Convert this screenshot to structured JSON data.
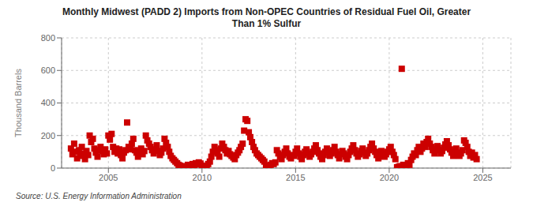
{
  "chart_data": {
    "type": "scatter",
    "title": "Monthly Midwest (PADD 2) Imports from Non-OPEC Countries of Residual Fuel Oil, Greater\nThan 1% Sulfur",
    "y_label": "Thousand Barrels",
    "annotations": [
      "Source: U.S. Energy Information Administration"
    ],
    "color": "#cc0000",
    "marker": "square",
    "grid": true,
    "xlim": [
      2002.5,
      2026.5
    ],
    "xticks": [
      2005,
      2010,
      2015,
      2020,
      2025
    ],
    "ylim": [
      0,
      800
    ],
    "yticks": [
      0,
      200,
      400,
      600,
      800
    ],
    "x": [
      2003.0,
      2003.08,
      2003.17,
      2003.25,
      2003.33,
      2003.42,
      2003.5,
      2003.58,
      2003.67,
      2003.75,
      2003.83,
      2003.92,
      2004.0,
      2004.08,
      2004.17,
      2004.25,
      2004.33,
      2004.42,
      2004.5,
      2004.58,
      2004.67,
      2004.75,
      2004.83,
      2004.92,
      2005.0,
      2005.08,
      2005.17,
      2005.25,
      2005.33,
      2005.42,
      2005.5,
      2005.58,
      2005.67,
      2005.75,
      2005.83,
      2005.92,
      2006.0,
      2006.08,
      2006.17,
      2006.25,
      2006.33,
      2006.42,
      2006.5,
      2006.58,
      2006.67,
      2006.75,
      2006.83,
      2006.92,
      2007.0,
      2007.08,
      2007.17,
      2007.25,
      2007.33,
      2007.42,
      2007.5,
      2007.58,
      2007.67,
      2007.75,
      2007.83,
      2007.92,
      2008.0,
      2008.08,
      2008.17,
      2008.25,
      2008.33,
      2008.42,
      2008.5,
      2008.58,
      2008.67,
      2008.75,
      2008.83,
      2008.92,
      2009.0,
      2009.08,
      2009.17,
      2009.25,
      2009.33,
      2009.42,
      2009.5,
      2009.58,
      2009.67,
      2009.75,
      2009.83,
      2009.92,
      2010.0,
      2010.08,
      2010.17,
      2010.25,
      2010.33,
      2010.42,
      2010.5,
      2010.58,
      2010.67,
      2010.75,
      2010.83,
      2010.92,
      2011.0,
      2011.08,
      2011.17,
      2011.25,
      2011.33,
      2011.42,
      2011.5,
      2011.58,
      2011.67,
      2011.75,
      2011.83,
      2011.92,
      2012.0,
      2012.08,
      2012.17,
      2012.25,
      2012.33,
      2012.42,
      2012.5,
      2012.58,
      2012.67,
      2012.75,
      2012.83,
      2012.92,
      2013.0,
      2013.08,
      2013.17,
      2013.25,
      2013.33,
      2013.42,
      2013.5,
      2013.58,
      2013.67,
      2013.75,
      2013.83,
      2013.92,
      2014.0,
      2014.08,
      2014.17,
      2014.25,
      2014.33,
      2014.42,
      2014.5,
      2014.58,
      2014.67,
      2014.75,
      2014.83,
      2014.92,
      2015.0,
      2015.08,
      2015.17,
      2015.25,
      2015.33,
      2015.42,
      2015.5,
      2015.58,
      2015.67,
      2015.75,
      2015.83,
      2015.92,
      2016.0,
      2016.08,
      2016.17,
      2016.25,
      2016.33,
      2016.42,
      2016.5,
      2016.58,
      2016.67,
      2016.75,
      2016.83,
      2016.92,
      2017.0,
      2017.08,
      2017.17,
      2017.25,
      2017.33,
      2017.42,
      2017.5,
      2017.58,
      2017.67,
      2017.75,
      2017.83,
      2017.92,
      2018.0,
      2018.08,
      2018.17,
      2018.25,
      2018.33,
      2018.42,
      2018.5,
      2018.58,
      2018.67,
      2018.75,
      2018.83,
      2018.92,
      2019.0,
      2019.08,
      2019.17,
      2019.25,
      2019.33,
      2019.42,
      2019.5,
      2019.58,
      2019.67,
      2019.75,
      2019.83,
      2019.92,
      2020.0,
      2020.08,
      2020.17,
      2020.25,
      2020.33,
      2020.42,
      2020.5,
      2020.58,
      2020.67,
      2020.75,
      2020.83,
      2020.92,
      2021.0,
      2021.08,
      2021.17,
      2021.25,
      2021.33,
      2021.42,
      2021.5,
      2021.58,
      2021.67,
      2021.75,
      2021.83,
      2021.92,
      2022.0,
      2022.08,
      2022.17,
      2022.25,
      2022.33,
      2022.42,
      2022.5,
      2022.58,
      2022.67,
      2022.75,
      2022.83,
      2022.92,
      2023.0,
      2023.08,
      2023.17,
      2023.25,
      2023.33,
      2023.42,
      2023.5,
      2023.58,
      2023.67,
      2023.75,
      2023.83,
      2023.92,
      2024.0,
      2024.08,
      2024.17,
      2024.25,
      2024.33,
      2024.42,
      2024.5,
      2024.58,
      2024.67
    ],
    "values": [
      120,
      85,
      150,
      100,
      60,
      110,
      75,
      130,
      90,
      55,
      105,
      80,
      200,
      160,
      180,
      120,
      95,
      70,
      110,
      130,
      105,
      85,
      115,
      90,
      200,
      175,
      210,
      130,
      100,
      120,
      90,
      115,
      80,
      60,
      95,
      110,
      280,
      130,
      115,
      150,
      180,
      110,
      95,
      70,
      100,
      120,
      85,
      105,
      200,
      170,
      150,
      130,
      110,
      90,
      115,
      140,
      105,
      80,
      95,
      120,
      180,
      155,
      130,
      100,
      75,
      60,
      50,
      40,
      30,
      20,
      15,
      10,
      5,
      8,
      12,
      20,
      15,
      10,
      25,
      18,
      30,
      22,
      35,
      28,
      15,
      10,
      5,
      8,
      25,
      40,
      70,
      100,
      130,
      110,
      90,
      70,
      120,
      150,
      130,
      110,
      90,
      105,
      85,
      75,
      65,
      55,
      80,
      95,
      110,
      130,
      150,
      230,
      300,
      290,
      220,
      190,
      160,
      130,
      110,
      90,
      80,
      70,
      60,
      50,
      40,
      5,
      10,
      15,
      20,
      30,
      25,
      35,
      110,
      90,
      70,
      55,
      80,
      100,
      120,
      90,
      70,
      60,
      80,
      75,
      100,
      120,
      90,
      70,
      55,
      80,
      100,
      115,
      90,
      70,
      85,
      100,
      120,
      140,
      110,
      90,
      70,
      55,
      80,
      100,
      120,
      95,
      75,
      90,
      110,
      130,
      100,
      80,
      60,
      85,
      105,
      90,
      70,
      55,
      80,
      100,
      120,
      140,
      110,
      90,
      70,
      85,
      105,
      120,
      95,
      75,
      90,
      110,
      130,
      150,
      120,
      100,
      80,
      60,
      85,
      105,
      90,
      70,
      85,
      100,
      115,
      130,
      100,
      80,
      55,
      5,
      8,
      12,
      610,
      20,
      10,
      15,
      30,
      20,
      50,
      70,
      90,
      80,
      110,
      130,
      100,
      120,
      150,
      130,
      160,
      180,
      150,
      130,
      110,
      90,
      115,
      135,
      110,
      90,
      105,
      125,
      145,
      165,
      140,
      115,
      95,
      75,
      100,
      120,
      95,
      75,
      90,
      110,
      170,
      155,
      130,
      100,
      75,
      95,
      65,
      80,
      55
    ]
  }
}
